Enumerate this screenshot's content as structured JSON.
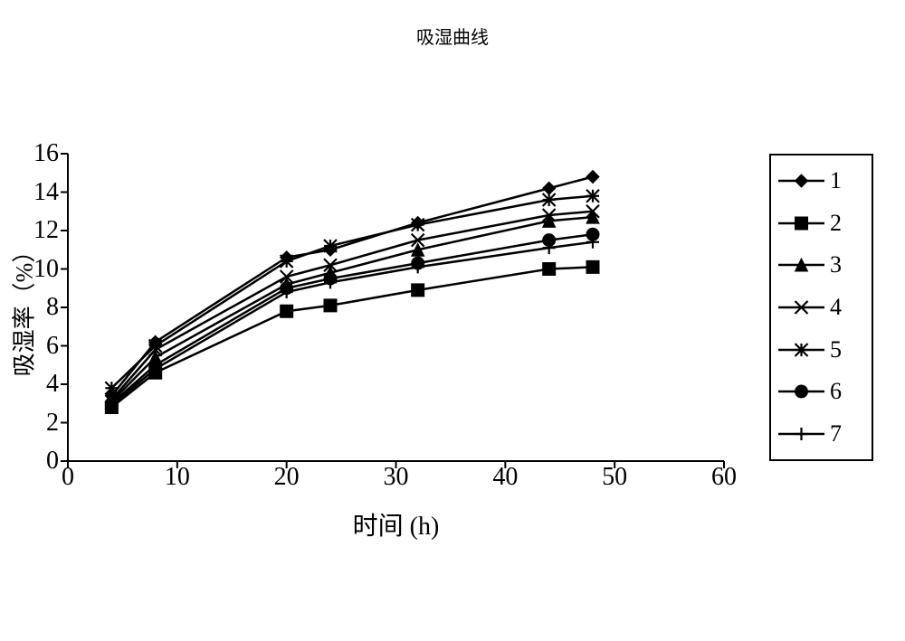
{
  "title": "吸湿曲线",
  "xlabel": "时间 (h)",
  "ylabel": "吸湿率（%）",
  "chart": {
    "type": "line",
    "xlim": [
      0,
      60
    ],
    "ylim": [
      0,
      16
    ],
    "xtick_step": 10,
    "ytick_step": 2,
    "xticks": [
      0,
      10,
      20,
      30,
      40,
      50,
      60
    ],
    "yticks": [
      0,
      2,
      4,
      6,
      8,
      10,
      12,
      14,
      16
    ],
    "axis_color": "#000000",
    "line_color": "#000000",
    "background_color": "#ffffff",
    "line_width": 2.5,
    "marker_size": 7,
    "tick_fontsize": 28,
    "label_fontsize": 28,
    "title_fontsize": 20,
    "legend_border_color": "#000000",
    "x": [
      4,
      8,
      20,
      24,
      32,
      44,
      48
    ],
    "series": [
      {
        "name": "1",
        "marker": "diamond",
        "y": [
          3.4,
          6.2,
          10.6,
          11.0,
          12.4,
          14.2,
          14.8
        ]
      },
      {
        "name": "2",
        "marker": "square",
        "y": [
          2.8,
          4.6,
          7.8,
          8.1,
          8.9,
          10.0,
          10.1
        ]
      },
      {
        "name": "3",
        "marker": "triangle",
        "y": [
          3.1,
          5.4,
          9.2,
          9.8,
          11.0,
          12.5,
          12.7
        ]
      },
      {
        "name": "4",
        "marker": "x",
        "y": [
          3.2,
          5.8,
          9.6,
          10.2,
          11.5,
          12.8,
          13.0
        ]
      },
      {
        "name": "5",
        "marker": "asterisk",
        "y": [
          3.8,
          6.0,
          10.4,
          11.2,
          12.3,
          13.6,
          13.8
        ]
      },
      {
        "name": "6",
        "marker": "circle",
        "y": [
          3.0,
          5.0,
          9.0,
          9.5,
          10.3,
          11.5,
          11.8
        ]
      },
      {
        "name": "7",
        "marker": "plus",
        "y": [
          2.9,
          4.8,
          8.8,
          9.3,
          10.1,
          11.1,
          11.4
        ]
      }
    ]
  }
}
